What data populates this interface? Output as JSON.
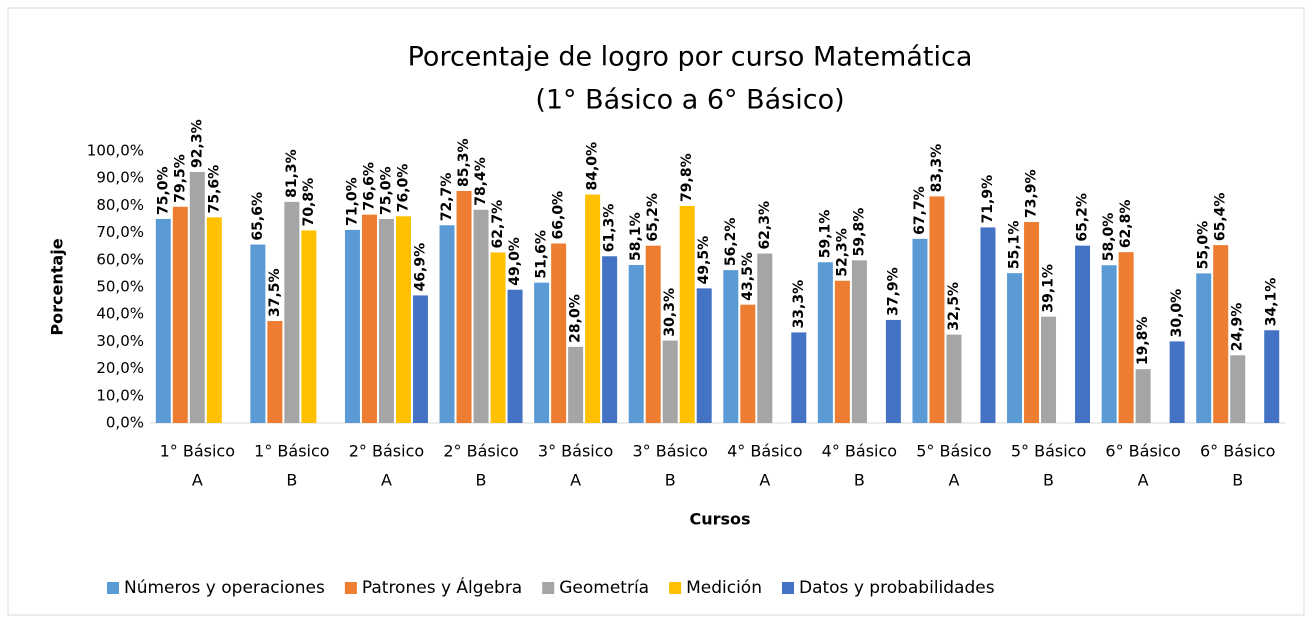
{
  "chart_data": {
    "type": "bar",
    "title": "Porcentaje de logro por curso Matemática",
    "subtitle": "(1° Básico a 6° Básico)",
    "y_label": "Porcentaje",
    "x_label": "Cursos",
    "categories": [
      [
        "1° Básico",
        "A"
      ],
      [
        "1° Básico",
        "B"
      ],
      [
        "2° Básico",
        "A"
      ],
      [
        "2° Básico",
        "B"
      ],
      [
        "3° Básico",
        "A"
      ],
      [
        "3° Básico",
        "B"
      ],
      [
        "4° Básico",
        "A"
      ],
      [
        "4° Básico",
        "B"
      ],
      [
        "5° Básico",
        "A"
      ],
      [
        "5° Básico",
        "B"
      ],
      [
        "6° Básico",
        "A"
      ],
      [
        "6° Básico",
        "B"
      ]
    ],
    "series": [
      {
        "name": "Números y operaciones",
        "color": "#5b9bd5",
        "values": [
          75.0,
          65.6,
          71.0,
          72.7,
          51.6,
          58.1,
          56.2,
          59.1,
          67.7,
          55.1,
          58.0,
          55.0
        ],
        "value_labels": [
          "75,0%",
          "65,6%",
          "71,0%",
          "72,7%",
          "51,6%",
          "58,1%",
          "56,2%",
          "59,1%",
          "67,7%",
          "55,1%",
          "58,0%",
          "55,0%"
        ]
      },
      {
        "name": "Patrones y Álgebra",
        "color": "#ed7d31",
        "values": [
          79.5,
          37.5,
          76.6,
          85.3,
          66.0,
          65.2,
          43.5,
          52.3,
          83.3,
          73.9,
          62.8,
          65.4
        ],
        "value_labels": [
          "79,5%",
          "37,5%",
          "76,6%",
          "85,3%",
          "66,0%",
          "65,2%",
          "43,5%",
          "52,3%",
          "83,3%",
          "73,9%",
          "62,8%",
          "65,4%"
        ]
      },
      {
        "name": "Geometría",
        "color": "#a5a5a5",
        "values": [
          92.3,
          81.3,
          75.0,
          78.4,
          28.0,
          30.3,
          62.3,
          59.8,
          32.5,
          39.1,
          19.8,
          24.9
        ],
        "value_labels": [
          "92,3%",
          "81,3%",
          "75,0%",
          "78,4%",
          "28,0%",
          "30,3%",
          "62,3%",
          "59,8%",
          "32,5%",
          "39,1%",
          "19,8%",
          "24,9%"
        ]
      },
      {
        "name": "Medición",
        "color": "#ffc000",
        "values": [
          75.6,
          70.8,
          76.0,
          62.7,
          84.0,
          79.8,
          null,
          null,
          null,
          null,
          null,
          null
        ],
        "value_labels": [
          "75,6%",
          "70,8%",
          "76,0%",
          "62,7%",
          "84,0%",
          "79,8%",
          null,
          null,
          null,
          null,
          null,
          null
        ]
      },
      {
        "name": "Datos y probabilidades",
        "color": "#4472c4",
        "values": [
          null,
          null,
          46.9,
          49.0,
          61.3,
          49.5,
          33.3,
          37.9,
          71.9,
          65.2,
          30.0,
          34.1
        ],
        "value_labels": [
          null,
          null,
          "46,9%",
          "49,0%",
          "61,3%",
          "49,5%",
          "33,3%",
          "37,9%",
          "71,9%",
          "65,2%",
          "30,0%",
          "34,1%"
        ]
      }
    ],
    "ylim": [
      0,
      100
    ],
    "yticks": [
      {
        "value": 0,
        "label": "0,0%"
      },
      {
        "value": 10,
        "label": "10,0%"
      },
      {
        "value": 20,
        "label": "20,0%"
      },
      {
        "value": 30,
        "label": "30,0%"
      },
      {
        "value": 40,
        "label": "40,0%"
      },
      {
        "value": 50,
        "label": "50,0%"
      },
      {
        "value": 60,
        "label": "60,0%"
      },
      {
        "value": 70,
        "label": "70,0%"
      },
      {
        "value": 80,
        "label": "80,0%"
      },
      {
        "value": 90,
        "label": "90,0%"
      },
      {
        "value": 100,
        "label": "100,0%"
      }
    ],
    "grid": false,
    "legend": "bottom"
  }
}
